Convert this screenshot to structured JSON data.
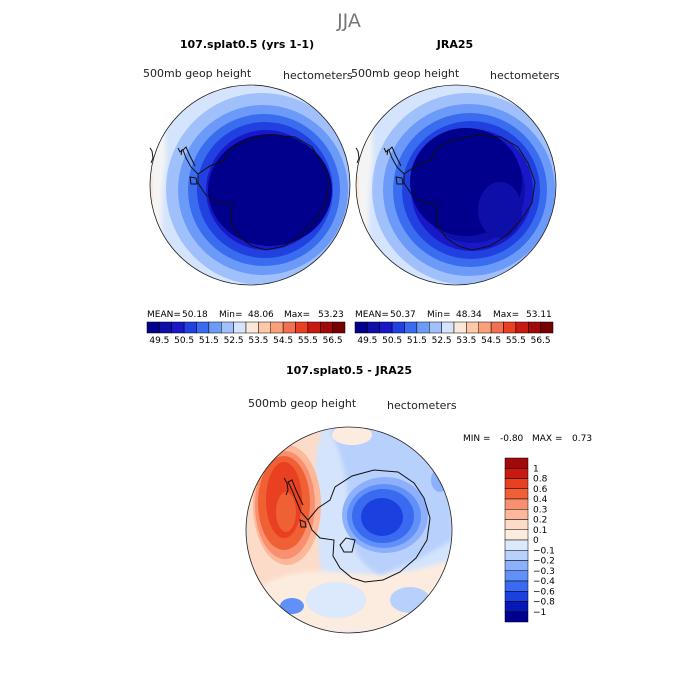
{
  "figure": {
    "season": "JJA",
    "panels": {
      "model": {
        "title": "107.splat0.5 (yrs 1-1)",
        "variable_label": "500mb geop height",
        "units_label": "hectometers",
        "stats": {
          "mean_label": "MEAN=",
          "mean": "50.18",
          "min_label": "Min=",
          "min": "48.06",
          "max_label": "Max=",
          "max": "53.23"
        }
      },
      "obs": {
        "title": "JRA25",
        "variable_label": "500mb geop height",
        "units_label": "hectometers",
        "stats": {
          "mean_label": "MEAN=",
          "mean": "50.37",
          "min_label": "Min=",
          "min": "48.34",
          "max_label": "Max=",
          "max": "53.11"
        }
      },
      "diff": {
        "title": "107.splat0.5 - JRA25",
        "variable_label": "500mb geop height",
        "units_label": "hectometers",
        "stats": {
          "min_label": "MIN =",
          "min": "-0.80",
          "max_label": "MAX =",
          "max": "0.73"
        }
      }
    }
  },
  "chart_data": [
    {
      "type": "heatmap",
      "projection": "south-polar-stereographic",
      "title": "107.splat0.5 (yrs 1-1)",
      "variable": "500mb geop height",
      "units": "hectometers",
      "season": "JJA",
      "stats": {
        "mean": 50.18,
        "min": 48.06,
        "max": 53.23
      },
      "contour_levels": [
        49.5,
        50,
        50.5,
        51,
        51.5,
        52,
        52.5,
        53,
        53.5,
        54,
        54.5,
        55,
        55.5,
        56,
        56.5
      ],
      "colorbar_tick_labels": [
        "49.5",
        "50.5",
        "51.5",
        "52.5",
        "53.5",
        "54.5",
        "55.5",
        "56.5"
      ],
      "colorbar_colors": [
        "#00008c",
        "#0e0ea8",
        "#1818c8",
        "#2040e0",
        "#3a6cf0",
        "#6c9af8",
        "#a0c0fc",
        "#d4e4fc",
        "#fce8d8",
        "#fcc8a8",
        "#f8a078",
        "#f07050",
        "#e84020",
        "#c81a10",
        "#a00a0a",
        "#780000"
      ],
      "regions": [
        {
          "location": "central cap",
          "level_index": 0
        },
        {
          "location": "mid-latitude ring",
          "level_index": 3
        },
        {
          "location": "outer ring",
          "level_index": 6
        },
        {
          "location": "rim near Atlantic/Africa",
          "level_index": 8
        }
      ]
    },
    {
      "type": "heatmap",
      "projection": "south-polar-stereographic",
      "title": "JRA25",
      "variable": "500mb geop height",
      "units": "hectometers",
      "season": "JJA",
      "stats": {
        "mean": 50.37,
        "min": 48.34,
        "max": 53.11
      },
      "contour_levels": [
        49.5,
        50,
        50.5,
        51,
        51.5,
        52,
        52.5,
        53,
        53.5,
        54,
        54.5,
        55,
        55.5,
        56,
        56.5
      ],
      "colorbar_tick_labels": [
        "49.5",
        "50.5",
        "51.5",
        "52.5",
        "53.5",
        "54.5",
        "55.5",
        "56.5"
      ],
      "colorbar_colors": [
        "#00008c",
        "#0e0ea8",
        "#1818c8",
        "#2040e0",
        "#3a6cf0",
        "#6c9af8",
        "#a0c0fc",
        "#d4e4fc",
        "#fce8d8",
        "#fcc8a8",
        "#f8a078",
        "#f07050",
        "#e84020",
        "#c81a10",
        "#a00a0a",
        "#780000"
      ],
      "regions": [
        {
          "location": "central cap",
          "level_index": 0
        },
        {
          "location": "East Antarctica lobe",
          "level_index": 1
        },
        {
          "location": "mid-latitude ring",
          "level_index": 3
        },
        {
          "location": "outer ring",
          "level_index": 6
        },
        {
          "location": "rim near Atlantic/Africa",
          "level_index": 8
        }
      ]
    },
    {
      "type": "heatmap",
      "projection": "south-polar-stereographic",
      "title": "107.splat0.5 - JRA25",
      "variable": "500mb geop height",
      "units": "hectometers",
      "season": "JJA",
      "stats": {
        "min": -0.8,
        "max": 0.73
      },
      "contour_levels": [
        -1,
        -0.8,
        -0.6,
        -0.4,
        -0.3,
        -0.2,
        -0.1,
        0,
        0.1,
        0.2,
        0.3,
        0.4,
        0.6,
        0.8,
        1
      ],
      "colorbar_tick_labels": [
        "1",
        "0.8",
        "0.6",
        "0.4",
        "0.3",
        "0.2",
        "0.1",
        "0",
        "−0.1",
        "−0.2",
        "−0.3",
        "−0.4",
        "−0.6",
        "−0.8",
        "−1"
      ],
      "colorbar_colors": [
        "#a00a0a",
        "#c81a10",
        "#e84020",
        "#f06035",
        "#f89070",
        "#fcb898",
        "#fcdcc8",
        "#fcece0",
        "#dce8fc",
        "#b8d0fc",
        "#8cb0fc",
        "#6090f8",
        "#3a6af0",
        "#1a40e0",
        "#0818b8",
        "#000090"
      ],
      "regions": [
        {
          "location": "South Atlantic / Antarctic Peninsula sector",
          "value_range": [
            0.3,
            0.73
          ]
        },
        {
          "location": "Indian Ocean sector",
          "value_range": [
            0.1,
            0.2
          ]
        },
        {
          "location": "East Antarctica",
          "value_range": [
            -0.6,
            -0.3
          ]
        },
        {
          "location": "Ross Sea / Pacific sector",
          "value_range": [
            -0.2,
            -0.1
          ]
        },
        {
          "location": "Weddell Sea coast",
          "value_range": [
            -0.2,
            -0.1
          ]
        }
      ]
    }
  ]
}
